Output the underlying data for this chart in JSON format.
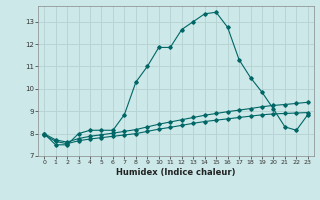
{
  "xlabel": "Humidex (Indice chaleur)",
  "bg_color": "#cce8e8",
  "grid_color": "#b8d4d4",
  "line_color": "#006666",
  "xlim": [
    -0.5,
    23.5
  ],
  "ylim": [
    7.0,
    13.7
  ],
  "yticks": [
    7,
    8,
    9,
    10,
    11,
    12,
    13
  ],
  "xticks": [
    0,
    1,
    2,
    3,
    4,
    5,
    6,
    7,
    8,
    9,
    10,
    11,
    12,
    13,
    14,
    15,
    16,
    17,
    18,
    19,
    20,
    21,
    22,
    23
  ],
  "line_main_x": [
    0,
    1,
    2,
    3,
    4,
    5,
    6,
    7,
    8,
    9,
    10,
    11,
    12,
    13,
    14,
    15,
    16,
    17,
    18,
    19,
    20,
    21,
    22,
    23
  ],
  "line_main_y": [
    8.0,
    7.5,
    7.5,
    8.0,
    8.15,
    8.15,
    8.15,
    8.85,
    10.3,
    11.0,
    11.85,
    11.85,
    12.65,
    13.0,
    13.35,
    13.42,
    12.75,
    11.3,
    10.5,
    9.85,
    9.1,
    8.3,
    8.15,
    8.85
  ],
  "line_upper_x": [
    0,
    1,
    2,
    3,
    4,
    5,
    6,
    7,
    8,
    9,
    10,
    11,
    12,
    13,
    14,
    15,
    16,
    17,
    18,
    19,
    20,
    21,
    22,
    23
  ],
  "line_upper_y": [
    8.0,
    7.72,
    7.62,
    7.78,
    7.88,
    7.95,
    8.02,
    8.1,
    8.18,
    8.3,
    8.42,
    8.52,
    8.62,
    8.72,
    8.82,
    8.9,
    8.98,
    9.05,
    9.12,
    9.2,
    9.26,
    9.3,
    9.35,
    9.4
  ],
  "line_lower_x": [
    0,
    1,
    2,
    3,
    4,
    5,
    6,
    7,
    8,
    9,
    10,
    11,
    12,
    13,
    14,
    15,
    16,
    17,
    18,
    19,
    20,
    21,
    22,
    23
  ],
  "line_lower_y": [
    7.95,
    7.65,
    7.55,
    7.68,
    7.76,
    7.82,
    7.88,
    7.94,
    8.0,
    8.1,
    8.2,
    8.28,
    8.37,
    8.46,
    8.54,
    8.6,
    8.66,
    8.72,
    8.78,
    8.84,
    8.88,
    8.9,
    8.92,
    8.94
  ]
}
